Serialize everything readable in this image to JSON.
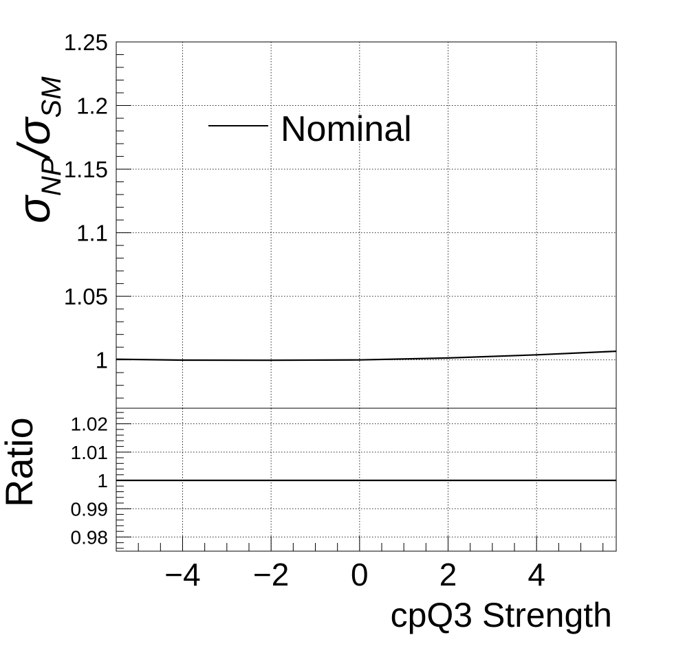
{
  "chart_data": [
    {
      "type": "line",
      "panel": "main",
      "ylabel": {
        "symbol": "σ",
        "sub1": "NP",
        "sep": "/",
        "symbol2": "σ",
        "sub2": "SM"
      },
      "xlim": [
        -5.5,
        5.8
      ],
      "ylim": [
        0.962,
        1.25
      ],
      "yticks": [
        1.0,
        1.05,
        1.1,
        1.15,
        1.2,
        1.25
      ],
      "ytick_labels": [
        "1",
        "1.05",
        "1.1",
        "1.15",
        "1.2",
        "1.25"
      ],
      "grid": true,
      "legend": {
        "placement": "top-left",
        "entries": [
          "Nominal"
        ]
      },
      "series": [
        {
          "name": "Nominal",
          "x": [
            -5.5,
            -4.0,
            -2.0,
            0.0,
            2.0,
            4.0,
            5.8
          ],
          "y": [
            1.0005,
            0.9998,
            0.9997,
            1.0,
            1.0015,
            1.004,
            1.0068
          ]
        }
      ]
    },
    {
      "type": "line",
      "panel": "ratio",
      "ylabel": "Ratio",
      "xlabel": "cpQ3 Strength",
      "xlim": [
        -5.5,
        5.8
      ],
      "ylim": [
        0.975,
        1.0255
      ],
      "yticks": [
        0.98,
        0.99,
        1.0,
        1.01,
        1.02
      ],
      "ytick_labels": [
        "0.98",
        "0.99",
        "1",
        "1.01",
        "1.02"
      ],
      "xticks": [
        -4,
        -2,
        0,
        2,
        4
      ],
      "xtick_labels": [
        "−4",
        "−2",
        "0",
        "2",
        "4"
      ],
      "grid": true,
      "series": [
        {
          "x": [
            -5.5,
            -4.0,
            -2.0,
            0.0,
            2.0,
            4.0,
            5.8
          ],
          "y": [
            1.0,
            1.0,
            1.0,
            1.0,
            1.0,
            1.0,
            1.0
          ]
        }
      ]
    }
  ]
}
